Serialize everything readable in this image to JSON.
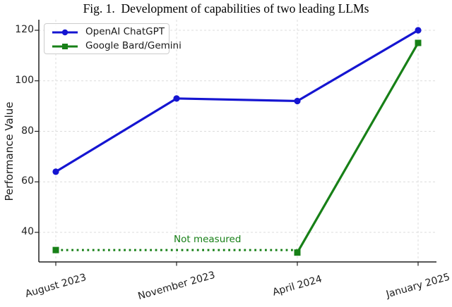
{
  "chart_data": {
    "type": "line",
    "title": "Fig. 1.  Development of capabilities of two leading LLMs",
    "xlabel": "",
    "ylabel": "Performance Value",
    "categories": [
      "August 2023",
      "November 2023",
      "April 2024",
      "January 2025"
    ],
    "yticks": [
      40,
      60,
      80,
      100,
      120
    ],
    "ylim": [
      28.3,
      124.2
    ],
    "grid": true,
    "grid_color": "#dcdcdc",
    "axis_color": "#202020",
    "legend_position": "upper-left",
    "series": [
      {
        "name": "OpenAI ChatGPT",
        "color": "#1515d1",
        "marker": "circle",
        "line_style": "solid",
        "values": [
          64,
          93,
          92,
          120
        ]
      },
      {
        "name": "Google Bard/Gemini",
        "color": "#178017",
        "marker": "square",
        "line_style": "solid",
        "values": [
          33,
          null,
          32,
          115
        ],
        "dotted_segment": {
          "from_index": 0,
          "to_index": 2,
          "value": 33
        }
      }
    ],
    "annotation": {
      "text": "Not measured",
      "color": "#178017"
    }
  }
}
